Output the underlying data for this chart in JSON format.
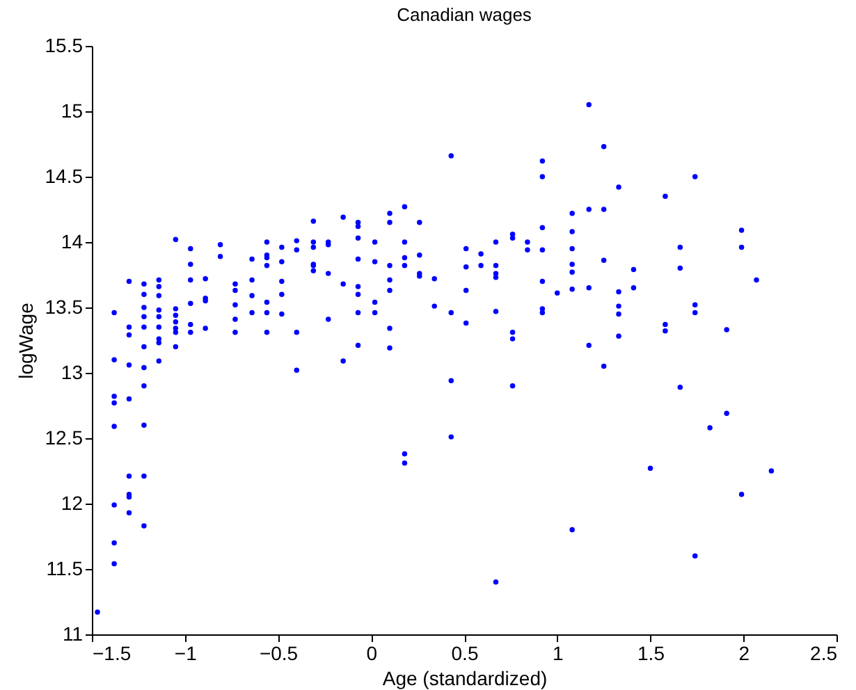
{
  "chart_data": {
    "type": "scatter",
    "title": "Canadian wages",
    "xlabel": "Age (standardized)",
    "ylabel": "logWage",
    "xlim": [
      -1.5,
      2.5
    ],
    "xticks": [
      -1.5,
      -1,
      -0.5,
      0,
      0.5,
      1,
      1.5,
      2,
      2.5
    ],
    "ylim": [
      11,
      15.5
    ],
    "yticks": [
      11,
      11.5,
      12,
      12.5,
      13,
      13.5,
      14,
      14.5,
      15,
      15.5
    ],
    "grid": false,
    "legend": false,
    "marker": "circle",
    "series": [
      {
        "color": "#0000ff",
        "x": [
          -1.47,
          -1.38,
          -1.38,
          -1.38,
          -1.38,
          -1.38,
          -1.38,
          -1.38,
          -1.38,
          -1.3,
          -1.3,
          -1.3,
          -1.3,
          -1.3,
          -1.3,
          -1.3,
          -1.3,
          -1.3,
          -1.22,
          -1.22,
          -1.22,
          -1.22,
          -1.22,
          -1.22,
          -1.22,
          -1.22,
          -1.22,
          -1.22,
          -1.22,
          -1.14,
          -1.14,
          -1.14,
          -1.14,
          -1.14,
          -1.14,
          -1.14,
          -1.14,
          -1.14,
          -1.05,
          -1.05,
          -1.05,
          -1.05,
          -1.05,
          -1.05,
          -1.05,
          -0.97,
          -0.97,
          -0.97,
          -0.97,
          -0.97,
          -0.97,
          -0.89,
          -0.89,
          -0.89,
          -0.89,
          -0.81,
          -0.81,
          -0.73,
          -0.73,
          -0.73,
          -0.73,
          -0.73,
          -0.64,
          -0.64,
          -0.64,
          -0.64,
          -0.56,
          -0.56,
          -0.56,
          -0.56,
          -0.56,
          -0.56,
          -0.56,
          -0.48,
          -0.48,
          -0.48,
          -0.48,
          -0.48,
          -0.4,
          -0.4,
          -0.4,
          -0.4,
          -0.31,
          -0.31,
          -0.31,
          -0.31,
          -0.31,
          -0.31,
          -0.23,
          -0.23,
          -0.23,
          -0.23,
          -0.15,
          -0.15,
          -0.15,
          -0.07,
          -0.07,
          -0.07,
          -0.07,
          -0.07,
          -0.07,
          -0.07,
          -0.07,
          0.02,
          0.02,
          0.02,
          0.02,
          0.1,
          0.1,
          0.1,
          0.1,
          0.1,
          0.1,
          0.1,
          0.18,
          0.18,
          0.18,
          0.18,
          0.18,
          0.18,
          0.26,
          0.26,
          0.26,
          0.26,
          0.34,
          0.34,
          0.43,
          0.43,
          0.43,
          0.43,
          0.51,
          0.51,
          0.51,
          0.51,
          0.59,
          0.59,
          0.67,
          0.67,
          0.67,
          0.67,
          0.67,
          0.67,
          0.76,
          0.76,
          0.76,
          0.76,
          0.76,
          0.84,
          0.84,
          0.92,
          0.92,
          0.92,
          0.92,
          0.92,
          0.92,
          0.92,
          1.0,
          1.08,
          1.08,
          1.08,
          1.08,
          1.08,
          1.08,
          1.08,
          1.17,
          1.17,
          1.17,
          1.17,
          1.25,
          1.25,
          1.25,
          1.25,
          1.33,
          1.33,
          1.33,
          1.33,
          1.33,
          1.41,
          1.41,
          1.5,
          1.58,
          1.58,
          1.58,
          1.66,
          1.66,
          1.66,
          1.74,
          1.74,
          1.74,
          1.74,
          1.82,
          1.91,
          1.91,
          1.99,
          1.99,
          1.99,
          2.07,
          2.15
        ],
        "values": [
          11.17,
          13.46,
          13.1,
          12.82,
          12.77,
          12.59,
          11.99,
          11.7,
          11.54,
          13.7,
          13.35,
          13.29,
          13.06,
          12.8,
          12.21,
          12.07,
          12.05,
          11.93,
          13.68,
          13.6,
          13.5,
          13.43,
          13.35,
          13.2,
          13.04,
          12.9,
          12.6,
          12.21,
          11.83,
          13.71,
          13.66,
          13.59,
          13.48,
          13.43,
          13.35,
          13.26,
          13.23,
          13.09,
          14.02,
          13.49,
          13.44,
          13.39,
          13.34,
          13.31,
          13.2,
          13.95,
          13.83,
          13.71,
          13.53,
          13.37,
          13.31,
          13.72,
          13.57,
          13.55,
          13.34,
          13.98,
          13.89,
          13.68,
          13.63,
          13.52,
          13.41,
          13.31,
          13.87,
          13.71,
          13.59,
          13.46,
          14.0,
          13.9,
          13.88,
          13.82,
          13.54,
          13.46,
          13.31,
          13.96,
          13.85,
          13.7,
          13.6,
          13.45,
          14.01,
          13.94,
          13.31,
          13.02,
          14.16,
          14.0,
          13.96,
          13.83,
          13.82,
          13.78,
          14.0,
          13.98,
          13.76,
          13.41,
          14.19,
          13.68,
          13.09,
          14.15,
          14.12,
          14.03,
          13.87,
          13.66,
          13.6,
          13.46,
          13.21,
          14.0,
          13.85,
          13.54,
          13.46,
          14.22,
          14.15,
          13.82,
          13.71,
          13.63,
          13.34,
          13.19,
          14.27,
          14.0,
          13.88,
          13.82,
          12.38,
          12.31,
          14.15,
          13.9,
          13.76,
          13.74,
          13.72,
          13.51,
          14.66,
          13.46,
          12.94,
          12.51,
          13.95,
          13.81,
          13.63,
          13.38,
          13.91,
          13.82,
          14.0,
          13.82,
          13.76,
          13.73,
          13.47,
          11.4,
          14.06,
          14.03,
          13.31,
          13.26,
          12.9,
          14.0,
          13.94,
          14.62,
          14.5,
          14.11,
          13.94,
          13.7,
          13.49,
          13.46,
          13.61,
          14.22,
          14.08,
          13.95,
          13.83,
          13.77,
          13.64,
          11.8,
          15.05,
          14.25,
          13.65,
          13.21,
          14.73,
          14.25,
          13.86,
          13.05,
          14.42,
          13.62,
          13.51,
          13.45,
          13.28,
          13.79,
          13.65,
          12.27,
          14.35,
          13.37,
          13.32,
          13.96,
          13.8,
          12.89,
          14.5,
          13.52,
          13.46,
          11.6,
          12.58,
          13.33,
          12.69,
          14.09,
          13.96,
          12.07,
          13.71,
          12.25
        ]
      }
    ]
  }
}
